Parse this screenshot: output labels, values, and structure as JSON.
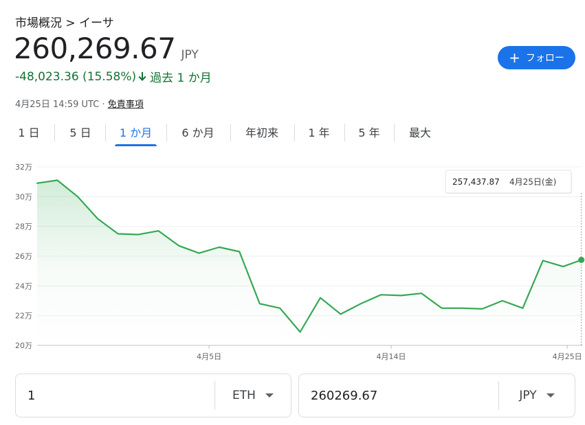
{
  "breadcrumb": "市場概況 > イーサ",
  "price": "260,269.67",
  "currency": "JPY",
  "change": "-48,023.36 (15.58%)",
  "period": "過去 1 か月",
  "timestamp": "4月25日 14:59 UTC · ",
  "disclaimer": "免責事項",
  "follow_label": "フォロー",
  "tabs": [
    "1 日",
    "5 日",
    "1 か月",
    "6 か月",
    "年初来",
    "1 年",
    "5 年",
    "最大"
  ],
  "active_tab": 2,
  "tooltip": {
    "value": "257,437.87",
    "date": "4月25日(金)"
  },
  "converter": {
    "from_value": "1",
    "from_unit": "ETH",
    "to_value": "260269.67",
    "to_unit": "JPY"
  },
  "colors": {
    "line": "#34a853",
    "accent": "#1a73e8",
    "positive_text": "#137333"
  },
  "chart_data": {
    "type": "area",
    "y_tick_labels": [
      "32万",
      "30万",
      "28万",
      "26万",
      "24万",
      "22万",
      "20万"
    ],
    "y_ticks": [
      320000,
      300000,
      280000,
      260000,
      240000,
      220000,
      200000
    ],
    "ylim": [
      200000,
      320000
    ],
    "x_tick_labels": [
      "4月5日",
      "4月14日",
      "4月25日"
    ],
    "x_ticks": [
      8.5,
      17.5,
      26.2
    ],
    "xlim": [
      0,
      26.4
    ],
    "grid": true,
    "series": [
      {
        "x": [
          0,
          1,
          2,
          3,
          4,
          5,
          6,
          7,
          8,
          9,
          10,
          11,
          12,
          13,
          14,
          15,
          16,
          17,
          18,
          19,
          20,
          21,
          22,
          23,
          24,
          25,
          26,
          26.9
        ],
        "values": [
          309000,
          311000,
          300000,
          285000,
          275000,
          274500,
          277000,
          267000,
          262000,
          266000,
          263000,
          228000,
          225000,
          209000,
          232000,
          221000,
          228000,
          234000,
          233500,
          235000,
          225000,
          225000,
          224500,
          230000,
          225000,
          257000,
          253000,
          257437.87
        ]
      }
    ]
  }
}
